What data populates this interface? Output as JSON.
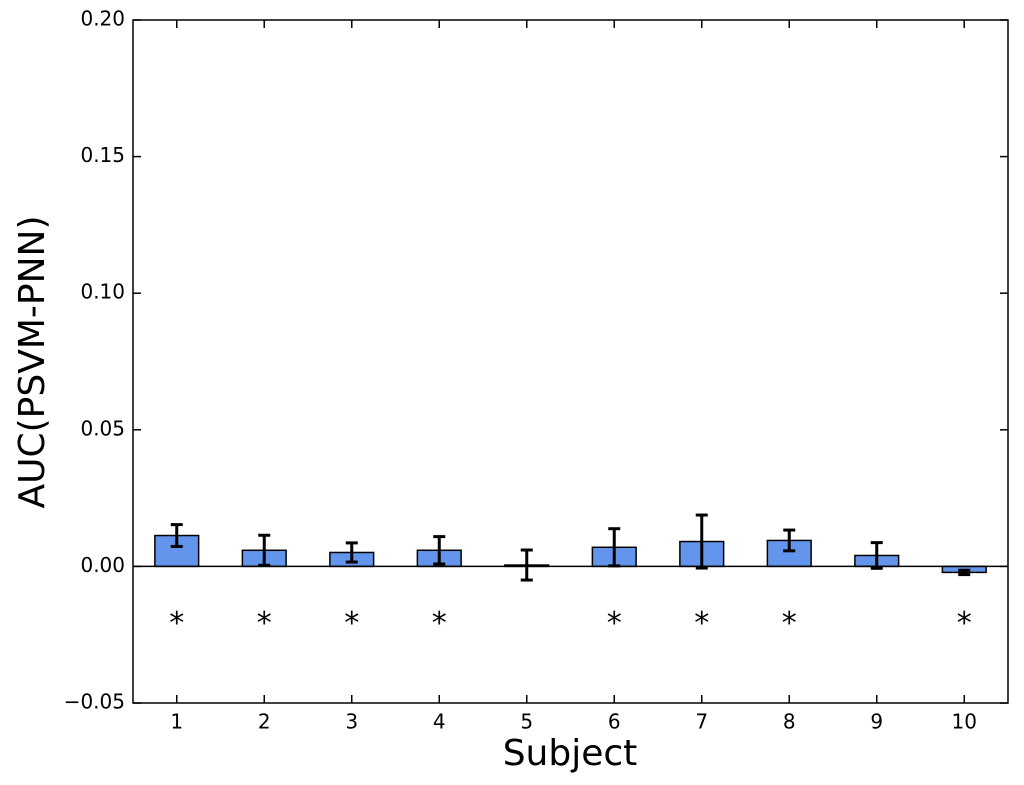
{
  "chart_data": {
    "type": "bar",
    "xlabel": "Subject",
    "ylabel": "AUC(PSVM-PNN)",
    "categories": [
      "1",
      "2",
      "3",
      "4",
      "5",
      "6",
      "7",
      "8",
      "9",
      "10"
    ],
    "values": [
      0.0113,
      0.0059,
      0.0051,
      0.0059,
      0.0005,
      0.007,
      0.0091,
      0.0095,
      0.004,
      -0.0022
    ],
    "errors": [
      0.004,
      0.0055,
      0.0035,
      0.005,
      0.0055,
      0.0068,
      0.0097,
      0.0038,
      0.0047,
      0.0008
    ],
    "annotations": [
      "*",
      "*",
      "*",
      "*",
      null,
      "*",
      "*",
      "*",
      null,
      "*"
    ],
    "color": "#6495ed",
    "ylim": [
      -0.05,
      0.2
    ],
    "yticks": [
      {
        "value": -0.05,
        "label": "−0.05"
      },
      {
        "value": 0,
        "label": "0.00"
      },
      {
        "value": 0.05,
        "label": "0.05"
      },
      {
        "value": 0.1,
        "label": "0.10"
      },
      {
        "value": 0.15,
        "label": "0.15"
      },
      {
        "value": 0.2,
        "label": "0.20"
      }
    ],
    "grid": false
  }
}
